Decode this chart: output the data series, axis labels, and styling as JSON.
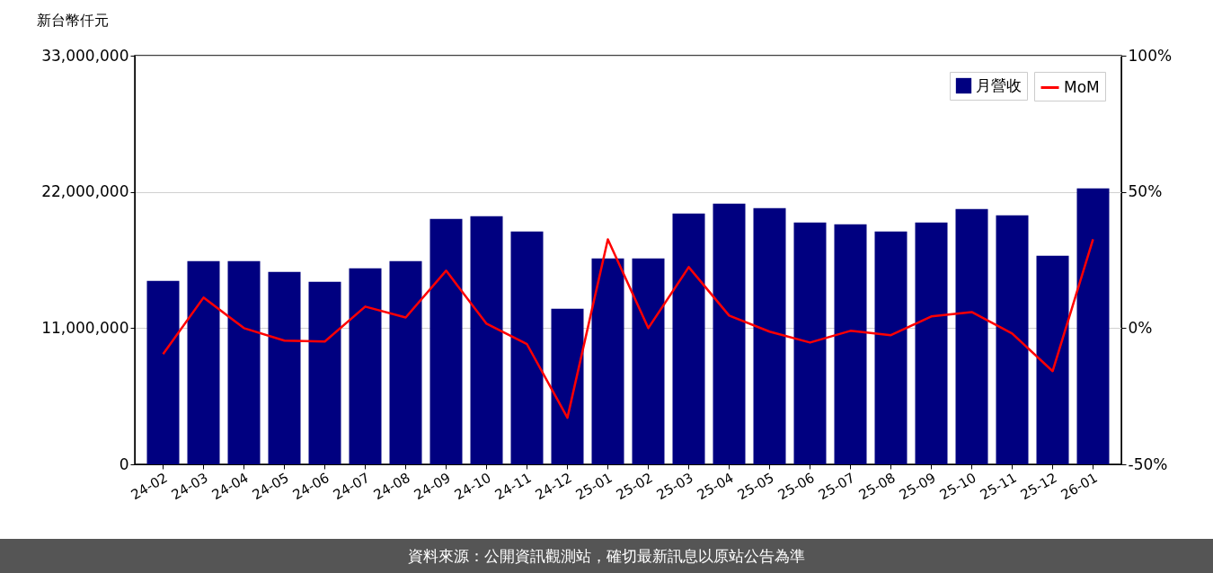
{
  "chart_data": {
    "type": "bar",
    "ylabel": "新台幣仟元",
    "categories": [
      "24-02",
      "24-03",
      "24-04",
      "24-05",
      "24-06",
      "24-07",
      "24-08",
      "24-09",
      "24-10",
      "24-11",
      "24-12",
      "25-01",
      "25-02",
      "25-03",
      "25-04",
      "25-05",
      "25-06",
      "25-07",
      "25-08",
      "25-09",
      "25-10",
      "25-11",
      "25-12",
      "26-01"
    ],
    "series": [
      {
        "name": "月營收",
        "color": "#000080",
        "values": [
          14810000,
          16410000,
          16410000,
          15540000,
          14740000,
          15830000,
          16410000,
          19820000,
          20040000,
          18810000,
          12560000,
          16630000,
          16630000,
          20260000,
          21060000,
          20690000,
          19530000,
          19390000,
          18810000,
          19530000,
          20620000,
          20110000,
          16850000,
          22290000
        ]
      },
      {
        "name": "MoM",
        "type": "line",
        "axis": "y2",
        "color": "#ff0000",
        "values": [
          -9.5,
          11.2,
          0,
          -4.6,
          -4.9,
          7.9,
          3.9,
          21.1,
          1.6,
          -5.9,
          -32.9,
          32.6,
          0,
          22.4,
          4.6,
          -1.3,
          -5.3,
          -1,
          -2.6,
          4.3,
          5.9,
          -2,
          -15.8,
          32.6
        ]
      }
    ],
    "ylim": [
      0,
      33000000
    ],
    "yticks": [
      0,
      {
        "value": 11000000,
        "label": "11,000,000"
      },
      {
        "value": 22000000,
        "label": "22,000,000"
      },
      {
        "value": 33000000,
        "label": "33,000,000"
      }
    ],
    "y2lim": [
      -50,
      100
    ],
    "y2ticks": [
      {
        "value": -50,
        "label": "-50%"
      },
      {
        "value": 0,
        "label": "0%"
      },
      {
        "value": 50,
        "label": "50%"
      },
      {
        "value": 100,
        "label": "100%"
      }
    ],
    "grid": "y",
    "legend": "top right",
    "line_style": "solid",
    "annotations": [
      "資料來源：公開資訊觀測站，確切最新訊息以原站公告為準"
    ]
  }
}
